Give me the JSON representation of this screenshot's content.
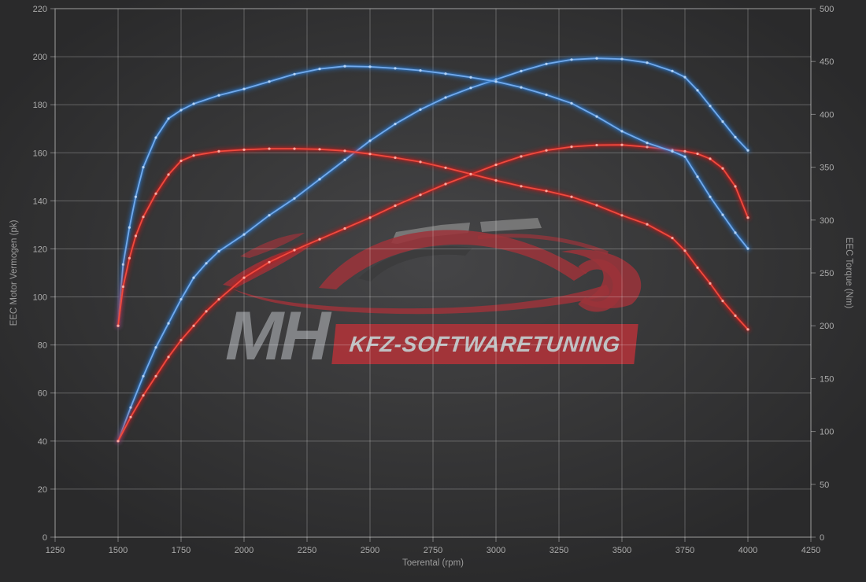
{
  "chart": {
    "x_axis": {
      "label": "Toerental (rpm)",
      "min": 1250,
      "max": 4250,
      "tick_step": 250,
      "ticks": [
        1250,
        1500,
        1750,
        2000,
        2250,
        2500,
        2750,
        3000,
        3250,
        3500,
        3750,
        4000,
        4250
      ]
    },
    "y_left": {
      "label": "EEC Motor Vermogen (pk)",
      "min": 0,
      "max": 220,
      "tick_step": 20,
      "ticks": [
        0,
        20,
        40,
        60,
        80,
        100,
        120,
        140,
        160,
        180,
        200,
        220
      ]
    },
    "y_right": {
      "label": "EEC Torque (Nm)",
      "min": 0,
      "max": 500,
      "tick_step": 50,
      "ticks": [
        0,
        50,
        100,
        150,
        200,
        250,
        300,
        350,
        400,
        450,
        500
      ]
    },
    "colors": {
      "grid": "rgba(255,255,255,0.26)",
      "spine": "rgba(255,255,255,0.38)",
      "tick_text": "#ababab",
      "blue_core": "#72aaec",
      "blue_glow": "#2979d0",
      "blue_marker": "#bdd9f8",
      "red_core": "#f04a3e",
      "red_glow": "#c41e1e",
      "red_marker": "#ffb4aa"
    }
  },
  "chart_data": {
    "type": "line",
    "xlabel": "Toerental (rpm)",
    "ylabel_left": "EEC Motor Vermogen (pk)",
    "ylabel_right": "EEC Torque (Nm)",
    "x_range": [
      1250,
      4250
    ],
    "y_left_range": [
      0,
      220
    ],
    "y_right_range": [
      0,
      500
    ],
    "grid": true,
    "legend": "none",
    "series": [
      {
        "name": "vermogen-tuned-blue",
        "axis": "left",
        "unit": "pk",
        "color_key": "blue",
        "points": [
          [
            1500,
            40
          ],
          [
            1550,
            54
          ],
          [
            1600,
            67
          ],
          [
            1650,
            79
          ],
          [
            1700,
            89
          ],
          [
            1750,
            99
          ],
          [
            1800,
            108
          ],
          [
            1850,
            114
          ],
          [
            1900,
            119
          ],
          [
            2000,
            126
          ],
          [
            2100,
            134
          ],
          [
            2200,
            141
          ],
          [
            2300,
            149
          ],
          [
            2400,
            157
          ],
          [
            2500,
            165
          ],
          [
            2600,
            172
          ],
          [
            2700,
            178
          ],
          [
            2800,
            183
          ],
          [
            2900,
            187
          ],
          [
            3000,
            190.5
          ],
          [
            3100,
            194
          ],
          [
            3200,
            197
          ],
          [
            3300,
            198.8
          ],
          [
            3400,
            199.3
          ],
          [
            3500,
            199
          ],
          [
            3600,
            197.5
          ],
          [
            3700,
            194
          ],
          [
            3750,
            191.5
          ],
          [
            3800,
            186
          ],
          [
            3850,
            179.5
          ],
          [
            3900,
            173
          ],
          [
            3950,
            166.5
          ],
          [
            4000,
            161
          ]
        ]
      },
      {
        "name": "vermogen-original-red",
        "axis": "left",
        "unit": "pk",
        "color_key": "red",
        "points": [
          [
            1500,
            40
          ],
          [
            1550,
            50
          ],
          [
            1600,
            59
          ],
          [
            1650,
            67
          ],
          [
            1700,
            75
          ],
          [
            1750,
            82
          ],
          [
            1800,
            88
          ],
          [
            1850,
            94
          ],
          [
            1900,
            99
          ],
          [
            2000,
            108
          ],
          [
            2100,
            114.5
          ],
          [
            2200,
            119.5
          ],
          [
            2300,
            124
          ],
          [
            2400,
            128.5
          ],
          [
            2500,
            133
          ],
          [
            2600,
            138
          ],
          [
            2700,
            142.5
          ],
          [
            2800,
            147
          ],
          [
            2900,
            151
          ],
          [
            3000,
            155
          ],
          [
            3100,
            158.5
          ],
          [
            3200,
            161
          ],
          [
            3300,
            162.5
          ],
          [
            3400,
            163.2
          ],
          [
            3500,
            163.3
          ],
          [
            3600,
            162.4
          ],
          [
            3700,
            161.2
          ],
          [
            3750,
            160.6
          ],
          [
            3800,
            159.6
          ],
          [
            3850,
            157.5
          ],
          [
            3900,
            153.5
          ],
          [
            3950,
            146
          ],
          [
            4000,
            133
          ]
        ]
      },
      {
        "name": "torque-tuned-blue",
        "axis": "right",
        "unit": "Nm",
        "color_key": "blue",
        "points": [
          [
            1500,
            200
          ],
          [
            1520,
            258
          ],
          [
            1545,
            293
          ],
          [
            1570,
            322
          ],
          [
            1600,
            350
          ],
          [
            1650,
            378
          ],
          [
            1700,
            396
          ],
          [
            1750,
            404
          ],
          [
            1800,
            410
          ],
          [
            1900,
            418
          ],
          [
            2000,
            424
          ],
          [
            2100,
            431
          ],
          [
            2200,
            438
          ],
          [
            2300,
            443
          ],
          [
            2400,
            445.5
          ],
          [
            2500,
            445
          ],
          [
            2600,
            443.5
          ],
          [
            2700,
            441.5
          ],
          [
            2800,
            438.5
          ],
          [
            2900,
            435
          ],
          [
            3000,
            431
          ],
          [
            3100,
            425.5
          ],
          [
            3200,
            418.5
          ],
          [
            3300,
            410.5
          ],
          [
            3400,
            398
          ],
          [
            3500,
            384
          ],
          [
            3600,
            373
          ],
          [
            3700,
            365
          ],
          [
            3750,
            360
          ],
          [
            3800,
            341
          ],
          [
            3850,
            322
          ],
          [
            3900,
            305
          ],
          [
            3950,
            288
          ],
          [
            4000,
            273
          ]
        ]
      },
      {
        "name": "torque-original-red",
        "axis": "right",
        "unit": "Nm",
        "color_key": "red",
        "points": [
          [
            1500,
            200
          ],
          [
            1520,
            237
          ],
          [
            1545,
            264
          ],
          [
            1570,
            285
          ],
          [
            1600,
            303
          ],
          [
            1650,
            325
          ],
          [
            1700,
            343
          ],
          [
            1750,
            356
          ],
          [
            1800,
            361
          ],
          [
            1900,
            365
          ],
          [
            2000,
            366.5
          ],
          [
            2100,
            367.5
          ],
          [
            2200,
            367.5
          ],
          [
            2300,
            367
          ],
          [
            2400,
            365.5
          ],
          [
            2500,
            362.5
          ],
          [
            2600,
            359
          ],
          [
            2700,
            355
          ],
          [
            2800,
            349.5
          ],
          [
            2900,
            343.5
          ],
          [
            3000,
            337.5
          ],
          [
            3100,
            332
          ],
          [
            3200,
            327.5
          ],
          [
            3300,
            322
          ],
          [
            3400,
            314
          ],
          [
            3500,
            304.5
          ],
          [
            3600,
            296
          ],
          [
            3700,
            283
          ],
          [
            3750,
            271
          ],
          [
            3800,
            255
          ],
          [
            3850,
            240
          ],
          [
            3900,
            223.5
          ],
          [
            3950,
            209.5
          ],
          [
            4000,
            196.5
          ]
        ]
      }
    ]
  },
  "watermark": {
    "mh": "MH",
    "brand": "KFZ-SOFTWARETUNING"
  }
}
